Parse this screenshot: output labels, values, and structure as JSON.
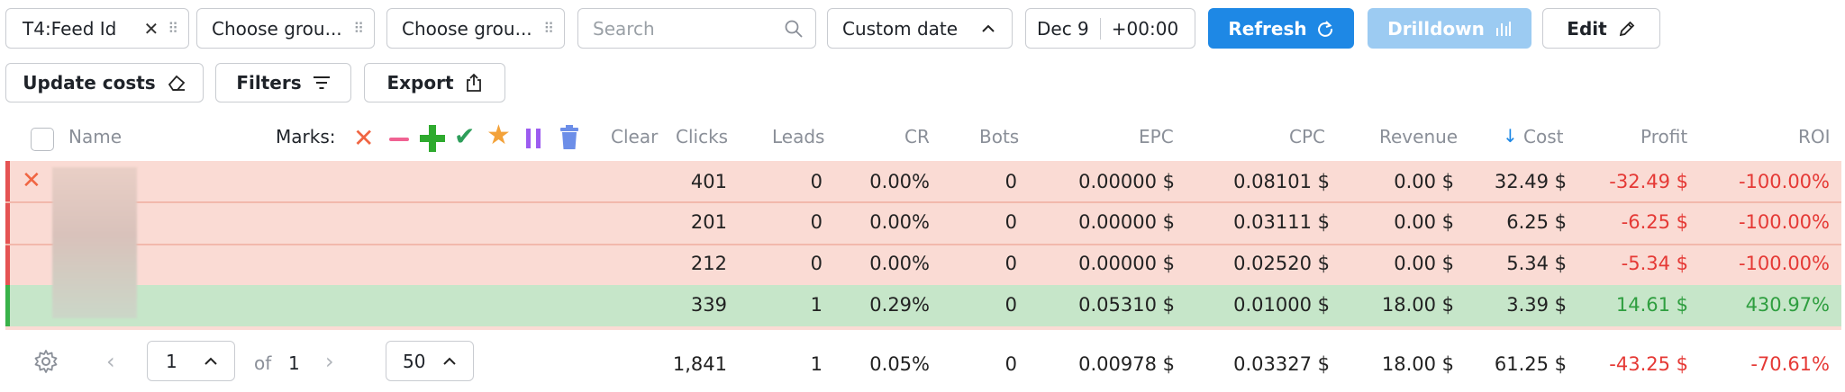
{
  "toolbar": {
    "filter_chip": "T4:Feed Id",
    "group2": "Choose grou...",
    "group3": "Choose grou...",
    "search_placeholder": "Search",
    "date_mode": "Custom date",
    "date_value": "Dec 9",
    "timezone": "+00:00",
    "refresh": "Refresh",
    "drilldown": "Drilldown",
    "edit": "Edit",
    "update_costs": "Update costs",
    "filters": "Filters",
    "export": "Export"
  },
  "table": {
    "headers": {
      "name": "Name",
      "marks": "Marks:",
      "clear": "Clear",
      "clicks": "Clicks",
      "leads": "Leads",
      "cr": "CR",
      "bots": "Bots",
      "epc": "EPC",
      "cpc": "CPC",
      "revenue": "Revenue",
      "cost": "Cost",
      "profit": "Profit",
      "roi": "ROI"
    },
    "rows": [
      {
        "clicks": "401",
        "leads": "0",
        "cr": "0.00%",
        "bots": "0",
        "epc": "0.00000 $",
        "cpc": "0.08101 $",
        "revenue": "0.00 $",
        "cost": "32.49 $",
        "profit": "-32.49 $",
        "roi": "-100.00%"
      },
      {
        "clicks": "201",
        "leads": "0",
        "cr": "0.00%",
        "bots": "0",
        "epc": "0.00000 $",
        "cpc": "0.03111 $",
        "revenue": "0.00 $",
        "cost": "6.25 $",
        "profit": "-6.25 $",
        "roi": "-100.00%"
      },
      {
        "clicks": "212",
        "leads": "0",
        "cr": "0.00%",
        "bots": "0",
        "epc": "0.00000 $",
        "cpc": "0.02520 $",
        "revenue": "0.00 $",
        "cost": "5.34 $",
        "profit": "-5.34 $",
        "roi": "-100.00%"
      },
      {
        "clicks": "339",
        "leads": "1",
        "cr": "0.29%",
        "bots": "0",
        "epc": "0.05310 $",
        "cpc": "0.01000 $",
        "revenue": "18.00 $",
        "cost": "3.39 $",
        "profit": "14.61 $",
        "roi": "430.97%"
      }
    ],
    "totals": {
      "clicks": "1,841",
      "leads": "1",
      "cr": "0.05%",
      "bots": "0",
      "epc": "0.00978 $",
      "cpc": "0.03327 $",
      "revenue": "18.00 $",
      "cost": "61.25 $",
      "profit": "-43.25 $",
      "roi": "-70.61%"
    }
  },
  "pagination": {
    "page": "1",
    "of_label": "of",
    "total_pages": "1",
    "per_page": "50"
  },
  "colors": {
    "accent": "#1e88e5",
    "loss_row": "#fadbd4",
    "win_row": "#c6e6c9",
    "negative": "#e53935",
    "positive": "#2e9e3f"
  }
}
